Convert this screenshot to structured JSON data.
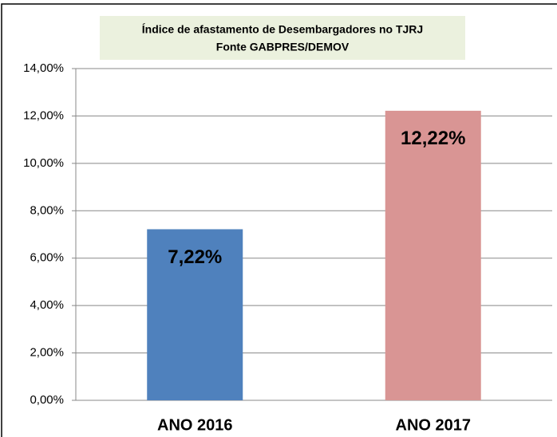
{
  "chart_data": {
    "type": "bar",
    "title": "Índice de afastamento  de Desembargadores no TJRJ",
    "subtitle": "Fonte  GABPRES/DEMOV",
    "categories": [
      "ANO 2016",
      "ANO 2017"
    ],
    "values": [
      7.22,
      12.22
    ],
    "value_labels": [
      "7,22%",
      "12,22%"
    ],
    "colors": [
      "#4f81bd",
      "#d99594"
    ],
    "ylim": [
      0,
      14
    ],
    "yticks": [
      {
        "value": 0,
        "label": "0,00%"
      },
      {
        "value": 2,
        "label": "2,00%"
      },
      {
        "value": 4,
        "label": "4,00%"
      },
      {
        "value": 6,
        "label": "6,00%"
      },
      {
        "value": 8,
        "label": "8,00%"
      },
      {
        "value": 10,
        "label": "10,00%"
      },
      {
        "value": 12,
        "label": "12,00%"
      },
      {
        "value": 14,
        "label": "14,00%"
      }
    ],
    "grid": true
  }
}
